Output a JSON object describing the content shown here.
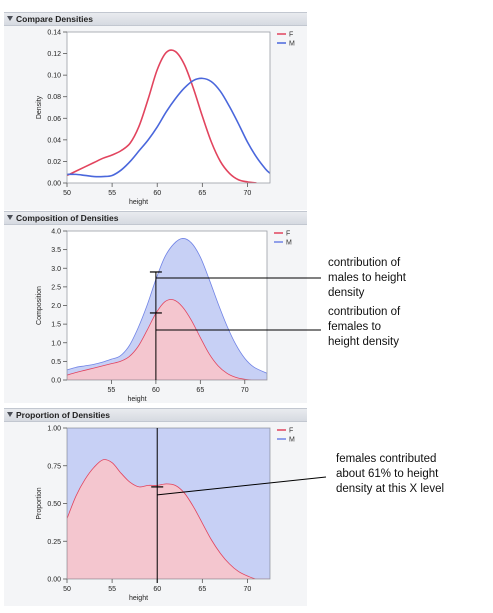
{
  "panels": [
    {
      "title": "Compare Densities",
      "chart_data": {
        "type": "line",
        "xlabel": "height",
        "ylabel": "Density",
        "xlim": [
          50,
          72.5
        ],
        "ylim": [
          0,
          0.14
        ],
        "xticks": [
          50,
          55,
          60,
          65,
          70
        ],
        "yticks": [
          0.0,
          0.02,
          0.04,
          0.06,
          0.08,
          0.1,
          0.12,
          0.14
        ],
        "ytick_labels": [
          "0.00",
          "0.02",
          "0.04",
          "0.06",
          "0.08",
          "0.10",
          "0.12",
          "0.14"
        ],
        "xtick_labels": [
          "50",
          "55",
          "60",
          "65",
          "70"
        ],
        "legend": "top-right",
        "series": [
          {
            "name": "F",
            "color": "#e2445e",
            "x": [
              50,
              51,
              52,
              53,
              54,
              55,
              56,
              57,
              58,
              59,
              60,
              61,
              62,
              63,
              64,
              65,
              66,
              67,
              68,
              69,
              70,
              71
            ],
            "values": [
              0.007,
              0.011,
              0.015,
              0.019,
              0.023,
              0.026,
              0.03,
              0.037,
              0.053,
              0.078,
              0.105,
              0.121,
              0.122,
              0.11,
              0.088,
              0.062,
              0.038,
              0.02,
              0.009,
              0.003,
              0.001,
              0.0
            ]
          },
          {
            "name": "M",
            "color": "#4a67dc",
            "x": [
              50,
              51,
              52,
              53,
              54,
              55,
              56,
              57,
              58,
              59,
              60,
              61,
              62,
              63,
              64,
              65,
              66,
              67,
              68,
              69,
              70,
              71,
              72,
              72.5
            ],
            "values": [
              0.008,
              0.008,
              0.007,
              0.006,
              0.006,
              0.007,
              0.012,
              0.02,
              0.03,
              0.04,
              0.052,
              0.066,
              0.078,
              0.088,
              0.095,
              0.097,
              0.094,
              0.085,
              0.071,
              0.055,
              0.038,
              0.024,
              0.013,
              0.009
            ]
          }
        ]
      }
    },
    {
      "title": "Composition of Densities",
      "chart_data": {
        "type": "area",
        "xlabel": "height",
        "ylabel": "Composition",
        "xlim": [
          50,
          72.5
        ],
        "ylim": [
          0,
          4.0
        ],
        "xticks": [
          55,
          60,
          65,
          70
        ],
        "yticks": [
          0.0,
          0.5,
          1.0,
          1.5,
          2.0,
          2.5,
          3.0,
          3.5,
          4.0
        ],
        "ytick_labels": [
          "0.0",
          "0.5",
          "1.0",
          "1.5",
          "2.0",
          "2.5",
          "3.0",
          "3.5",
          "4.0"
        ],
        "xtick_labels": [
          "55",
          "60",
          "65",
          "70"
        ],
        "legend": "top-right",
        "series": [
          {
            "name": "F",
            "color": "#e2445e",
            "fill": "#f4c6cf",
            "x": [
              50,
              51,
              52,
              53,
              54,
              55,
              56,
              57,
              58,
              59,
              60,
              61,
              62,
              63,
              64,
              65,
              66,
              67,
              68,
              69,
              70,
              71,
              72.5
            ],
            "values": [
              0.13,
              0.2,
              0.26,
              0.32,
              0.38,
              0.44,
              0.5,
              0.63,
              0.9,
              1.33,
              1.79,
              2.1,
              2.15,
              1.96,
              1.6,
              1.14,
              0.7,
              0.38,
              0.18,
              0.07,
              0.02,
              0.0,
              0.0
            ]
          },
          {
            "name": "M",
            "color": "#7083e6",
            "fill": "#c7d0f5",
            "x": [
              50,
              51,
              52,
              53,
              54,
              55,
              56,
              57,
              58,
              59,
              60,
              61,
              62,
              63,
              64,
              65,
              66,
              67,
              68,
              69,
              70,
              71,
              72.5
            ],
            "values": [
              0.27,
              0.34,
              0.38,
              0.42,
              0.48,
              0.56,
              0.65,
              0.92,
              1.4,
              2.0,
              2.7,
              3.3,
              3.65,
              3.8,
              3.68,
              3.3,
              2.7,
              2.05,
              1.45,
              0.95,
              0.58,
              0.35,
              0.18
            ]
          }
        ]
      }
    },
    {
      "title": "Proportion of Densities",
      "chart_data": {
        "type": "area",
        "xlabel": "height",
        "ylabel": "Proportion",
        "xlim": [
          50,
          72.5
        ],
        "ylim": [
          0,
          1.0
        ],
        "xticks": [
          50,
          55,
          60,
          65,
          70
        ],
        "yticks": [
          0.0,
          0.25,
          0.5,
          0.75,
          1.0
        ],
        "ytick_labels": [
          "0.00",
          "0.25",
          "0.50",
          "0.75",
          "1.00"
        ],
        "xtick_labels": [
          "50",
          "55",
          "60",
          "65",
          "70"
        ],
        "legend": "top-right",
        "series": [
          {
            "name": "F",
            "color": "#e2445e",
            "fill": "#f4c6cf",
            "x": [
              50,
              51,
              52,
              53,
              54,
              55,
              56,
              57,
              58,
              59,
              60,
              61,
              62,
              63,
              64,
              65,
              66,
              67,
              68,
              69,
              70,
              71,
              72.5
            ],
            "values": [
              0.4,
              0.55,
              0.66,
              0.74,
              0.79,
              0.77,
              0.7,
              0.64,
              0.61,
              0.62,
              0.62,
              0.63,
              0.62,
              0.57,
              0.48,
              0.37,
              0.26,
              0.17,
              0.1,
              0.05,
              0.02,
              0.0,
              0.0
            ]
          },
          {
            "name": "M",
            "color": "#7083e6",
            "fill": "#c7d0f5",
            "x": [
              50,
              72.5
            ],
            "values": [
              1.0,
              1.0
            ]
          }
        ]
      }
    }
  ],
  "annotations": [
    {
      "text": "contribution of\nmales to height\ndensity",
      "panel": 1,
      "x": 60,
      "y": 2.9
    },
    {
      "text": "contribution of\nfemales to\nheight density",
      "panel": 1,
      "x": 60,
      "y": 1.8
    },
    {
      "text": "females contributed\nabout 61% to height\ndensity at this X level",
      "panel": 2,
      "x": 60,
      "y": 0.61
    }
  ],
  "colors": {
    "female": "#e2445e",
    "male": "#4a67dc",
    "female_fill": "#f4c6cf",
    "male_fill": "#c7d0f5"
  }
}
